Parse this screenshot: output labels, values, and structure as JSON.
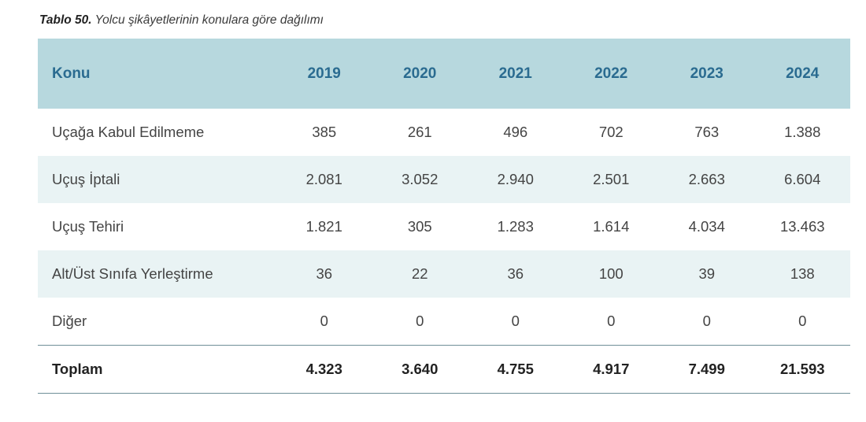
{
  "caption": {
    "label": "Tablo 50.",
    "text": "Yolcu şikâyetlerinin konulara göre dağılımı"
  },
  "table": {
    "columns": [
      "Konu",
      "2019",
      "2020",
      "2021",
      "2022",
      "2023",
      "2024"
    ],
    "rows": [
      {
        "topic": "Uçağa Kabul Edilmeme",
        "values": [
          "385",
          "261",
          "496",
          "702",
          "763",
          "1.388"
        ]
      },
      {
        "topic": "Uçuş İptali",
        "values": [
          "2.081",
          "3.052",
          "2.940",
          "2.501",
          "2.663",
          "6.604"
        ]
      },
      {
        "topic": "Uçuş Tehiri",
        "values": [
          "1.821",
          "305",
          "1.283",
          "1.614",
          "4.034",
          "13.463"
        ]
      },
      {
        "topic": "Alt/Üst Sınıfa Yerleştirme",
        "values": [
          "36",
          "22",
          "36",
          "100",
          "39",
          "138"
        ]
      },
      {
        "topic": "Diğer",
        "values": [
          "0",
          "0",
          "0",
          "0",
          "0",
          "0"
        ]
      }
    ],
    "total": {
      "topic": "Toplam",
      "values": [
        "4.323",
        "3.640",
        "4.755",
        "4.917",
        "7.499",
        "21.593"
      ]
    }
  },
  "colors": {
    "header_bg": "#b7d8de",
    "header_text": "#2a6b90",
    "stripe_bg": "#e9f3f4",
    "rule": "#6f8f98"
  }
}
